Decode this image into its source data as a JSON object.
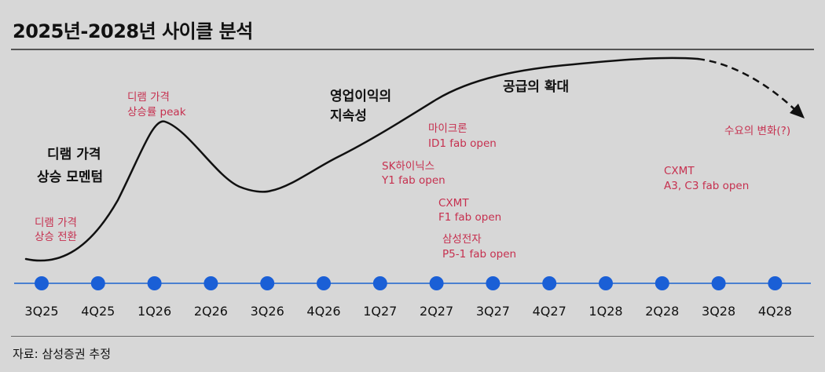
{
  "title": "2025년-2028년 사이클 분석",
  "source": "자료: 삼성증권 추정",
  "colors": {
    "curve": "#111111",
    "timeline": "#4a80d0",
    "node": "#1a5fd6",
    "red_text": "#c6304f"
  },
  "timeline": {
    "quarters": [
      "3Q25",
      "4Q25",
      "1Q26",
      "2Q26",
      "3Q26",
      "4Q26",
      "1Q27",
      "2Q27",
      "3Q27",
      "4Q27",
      "1Q28",
      "2Q28",
      "3Q28",
      "4Q28"
    ]
  },
  "phases": [
    {
      "lines": [
        "디램 가격",
        "상승 모멘텀"
      ]
    },
    {
      "lines": [
        "영업이익의",
        "지속성"
      ]
    },
    {
      "lines": [
        "공급의 확대"
      ]
    }
  ],
  "events": [
    {
      "lines": [
        "디램 가격",
        "상승 전환"
      ]
    },
    {
      "lines": [
        "디램 가격",
        "상승률 peak"
      ]
    },
    {
      "lines": [
        "SK하이닉스",
        "Y1 fab open"
      ]
    },
    {
      "lines": [
        "마이크론",
        "ID1 fab open"
      ]
    },
    {
      "lines": [
        "CXMT",
        "F1 fab open"
      ]
    },
    {
      "lines": [
        "삼성전자",
        "P5-1 fab open"
      ]
    },
    {
      "lines": [
        "CXMT",
        "A3, C3 fab open"
      ]
    },
    {
      "lines": [
        "수요의 변화(?)"
      ]
    }
  ]
}
